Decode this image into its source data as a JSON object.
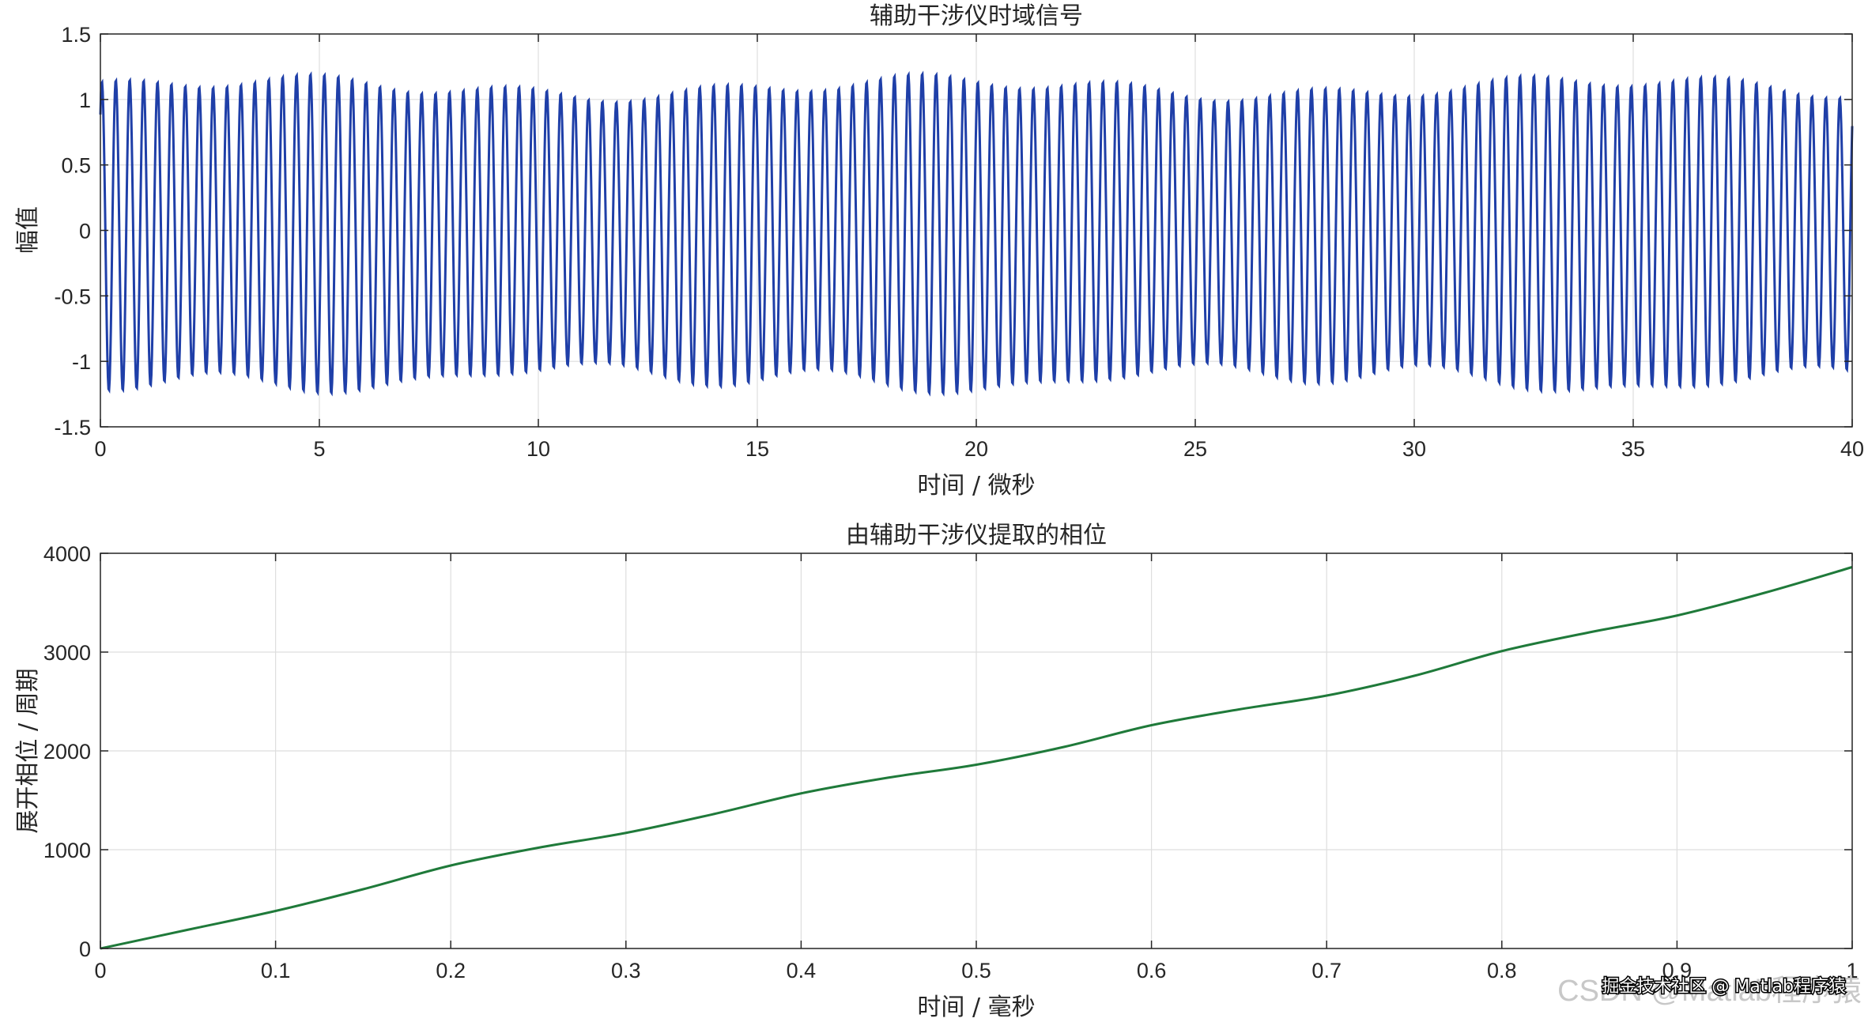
{
  "chart_data": [
    {
      "type": "line",
      "title": "辅助干涉仪时域信号",
      "xlabel": "时间 / 微秒",
      "ylabel": "幅值",
      "xlim": [
        0,
        40
      ],
      "ylim": [
        -1.5,
        1.5
      ],
      "xticks": [
        "0",
        "5",
        "10",
        "15",
        "20",
        "25",
        "30",
        "35",
        "40"
      ],
      "yticks": [
        "-1.5",
        "-1",
        "-0.5",
        "0",
        "0.5",
        "1",
        "1.5"
      ],
      "grid": true,
      "line_color": "#1f3fa8",
      "signal": {
        "description_free": "oscillating sinusoid",
        "cycles": 126,
        "start_phase_value": 0.78,
        "amplitude_range": [
          1.0,
          1.3
        ]
      }
    },
    {
      "type": "line",
      "title": "由辅助干涉仪提取的相位",
      "xlabel": "时间 / 毫秒",
      "ylabel": "展开相位 / 周期",
      "xlim": [
        0,
        1
      ],
      "ylim": [
        0,
        4000
      ],
      "xticks": [
        "0",
        "0.1",
        "0.2",
        "0.3",
        "0.4",
        "0.5",
        "0.6",
        "0.7",
        "0.8",
        "0.9",
        "1"
      ],
      "yticks": [
        "0",
        "1000",
        "2000",
        "3000",
        "4000"
      ],
      "grid": true,
      "line_color": "#1f7a3a",
      "x": [
        0,
        0.05,
        0.1,
        0.15,
        0.2,
        0.25,
        0.3,
        0.35,
        0.4,
        0.45,
        0.5,
        0.55,
        0.6,
        0.65,
        0.7,
        0.75,
        0.8,
        0.85,
        0.9,
        0.95,
        1.0
      ],
      "y": [
        0,
        190,
        380,
        600,
        840,
        1020,
        1170,
        1360,
        1570,
        1730,
        1860,
        2040,
        2260,
        2420,
        2560,
        2760,
        3010,
        3200,
        3370,
        3600,
        3860
      ]
    }
  ],
  "watermark": {
    "csdn": "CSDN @Matlab程序猿",
    "juejin": "掘金技术社区 @ Matlab程序猿"
  }
}
